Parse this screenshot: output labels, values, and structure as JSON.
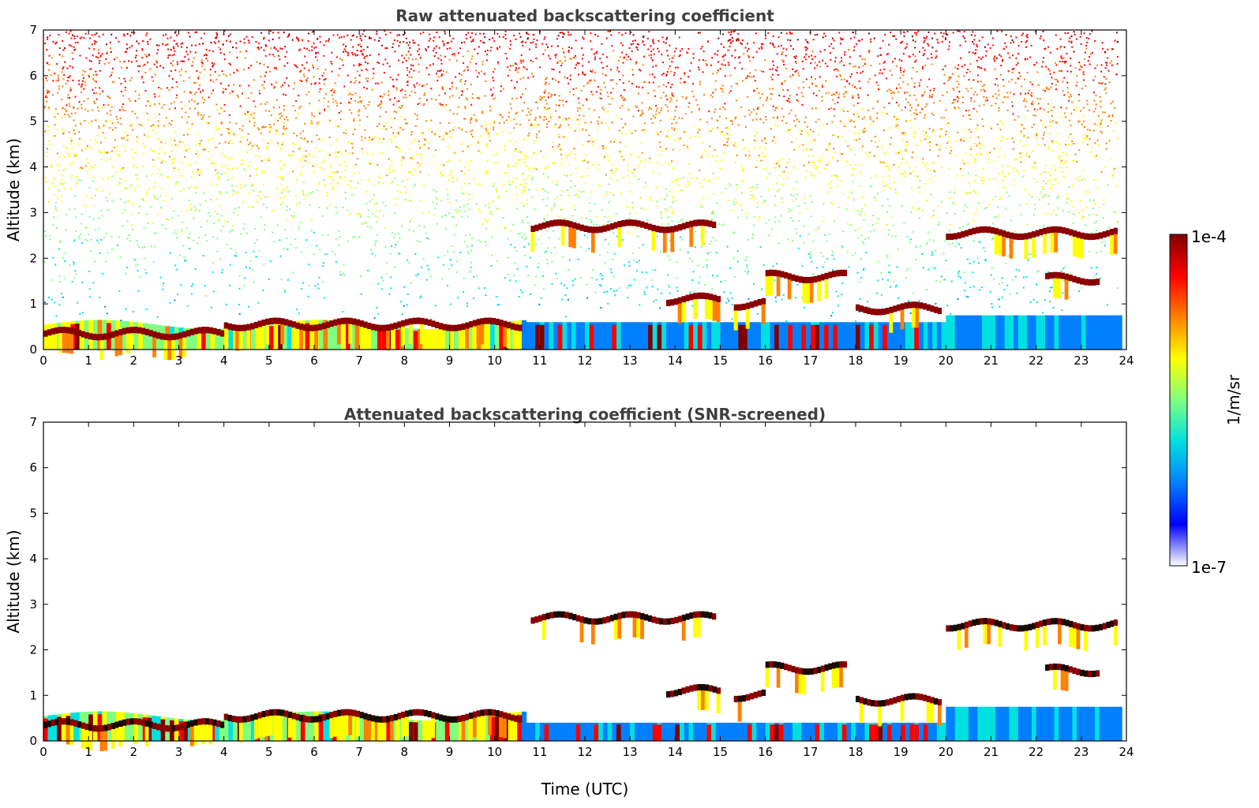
{
  "chart_data": [
    {
      "type": "heatmap",
      "title": "Raw attenuated backscattering coefficient",
      "xlabel": "",
      "ylabel": "Altitude (km)",
      "xlim": [
        0,
        24
      ],
      "ylim": [
        0,
        7
      ],
      "x_ticks": [
        0,
        1,
        2,
        3,
        4,
        5,
        6,
        7,
        8,
        9,
        10,
        11,
        12,
        13,
        14,
        15,
        16,
        17,
        18,
        19,
        20,
        21,
        22,
        23,
        24
      ],
      "y_ticks": [
        0,
        1,
        2,
        3,
        4,
        5,
        6,
        7
      ],
      "grid": false,
      "cloud_layers": [
        {
          "t_start": 0.0,
          "t_end": 4.0,
          "altitude": 0.35
        },
        {
          "t_start": 4.0,
          "t_end": 10.6,
          "altitude": 0.55
        },
        {
          "t_start": 10.8,
          "t_end": 14.9,
          "altitude": 2.7
        },
        {
          "t_start": 13.8,
          "t_end": 15.0,
          "altitude": 1.1
        },
        {
          "t_start": 15.3,
          "t_end": 16.0,
          "altitude": 1.0
        },
        {
          "t_start": 16.0,
          "t_end": 17.8,
          "altitude": 1.6
        },
        {
          "t_start": 18.0,
          "t_end": 19.9,
          "altitude": 0.9
        },
        {
          "t_start": 20.0,
          "t_end": 23.8,
          "altitude": 2.55
        },
        {
          "t_start": 22.2,
          "t_end": 23.4,
          "altitude": 1.55
        }
      ]
    },
    {
      "type": "heatmap",
      "title": "Attenuated backscattering coefficient (SNR-screened)",
      "xlabel": "Time (UTC)",
      "ylabel": "Altitude (km)",
      "xlim": [
        0,
        24
      ],
      "ylim": [
        0,
        7
      ],
      "x_ticks": [
        0,
        1,
        2,
        3,
        4,
        5,
        6,
        7,
        8,
        9,
        10,
        11,
        12,
        13,
        14,
        15,
        16,
        17,
        18,
        19,
        20,
        21,
        22,
        23,
        24
      ],
      "y_ticks": [
        0,
        1,
        2,
        3,
        4,
        5,
        6,
        7
      ],
      "grid": false
    }
  ],
  "colorbar": {
    "label": "1/m/sr",
    "max_label": "1e-4",
    "min_label": "1e-7",
    "scale": "log",
    "range": [
      1e-07,
      0.0001
    ],
    "colormap": [
      "#ffffff",
      "#0000ff",
      "#0080ff",
      "#00e0e0",
      "#80ff80",
      "#ffff00",
      "#ff8000",
      "#ff0000",
      "#800000"
    ]
  }
}
